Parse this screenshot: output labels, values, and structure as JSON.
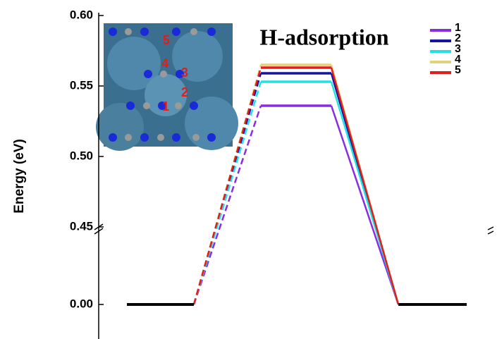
{
  "chart_data": {
    "type": "energy-profile",
    "title": "H-adsorption",
    "y_label": "Energy (eV)",
    "categories": [
      null,
      null,
      null
    ],
    "y_segments": [
      {
        "ylim": [
          0.45,
          0.6
        ],
        "yticks": [
          {
            "value": 0.45,
            "label": "0.45"
          },
          {
            "value": 0.5,
            "label": "0.50"
          },
          {
            "value": 0.55,
            "label": "0.55"
          },
          {
            "value": 0.6,
            "label": "0.60"
          }
        ]
      },
      {
        "ylim": [
          -0.025,
          0.05
        ],
        "yticks": [
          {
            "value": 0,
            "label": "0.00"
          }
        ]
      }
    ],
    "series": [
      {
        "name": "1",
        "color": "#8b2be2",
        "values": [
          0,
          0.536,
          0
        ]
      },
      {
        "name": "2",
        "color": "#1414a0",
        "values": [
          0,
          0.559,
          0
        ]
      },
      {
        "name": "3",
        "color": "#22e0e6",
        "values": [
          0,
          0.553,
          0
        ]
      },
      {
        "name": "4",
        "color": "#e2d27a",
        "values": [
          0,
          0.565,
          0
        ]
      },
      {
        "name": "5",
        "color": "#e01e1e",
        "values": [
          0,
          0.563,
          0
        ]
      }
    ],
    "inset_labels": [
      "1",
      "2",
      "3",
      "4",
      "5"
    ]
  }
}
